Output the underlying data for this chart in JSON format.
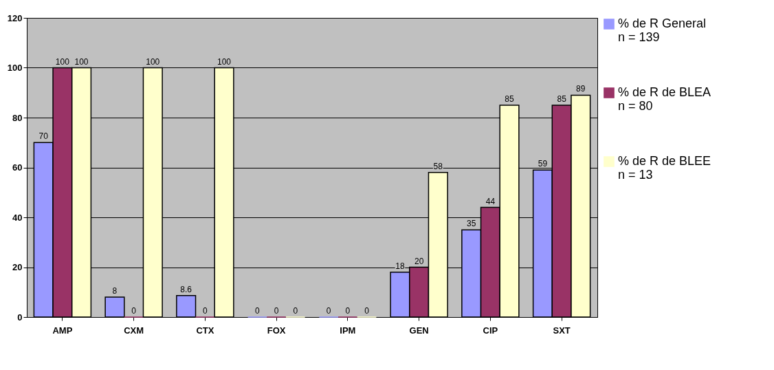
{
  "chart_data": {
    "type": "bar",
    "categories": [
      "AMP",
      "CXM",
      "CTX",
      "FOX",
      "IPM",
      "GEN",
      "CIP",
      "SXT"
    ],
    "series": [
      {
        "name": "% de R General n = 139",
        "color": "#9999ff",
        "values": [
          70,
          8,
          8.6,
          0,
          0,
          18,
          35,
          59
        ]
      },
      {
        "name": "% de R de BLEA   n = 80",
        "color": "#993366",
        "values": [
          100,
          0,
          0,
          0,
          0,
          20,
          44,
          85
        ]
      },
      {
        "name": "% de R de BLEE   n = 13",
        "color": "#ffffcc",
        "values": [
          100,
          100,
          100,
          0,
          0,
          58,
          85,
          89
        ]
      }
    ],
    "ylim": [
      0,
      120
    ],
    "yticks": [
      0,
      20,
      40,
      60,
      80,
      100,
      120
    ],
    "grid": "y",
    "legend": "right",
    "data_labels": true
  }
}
